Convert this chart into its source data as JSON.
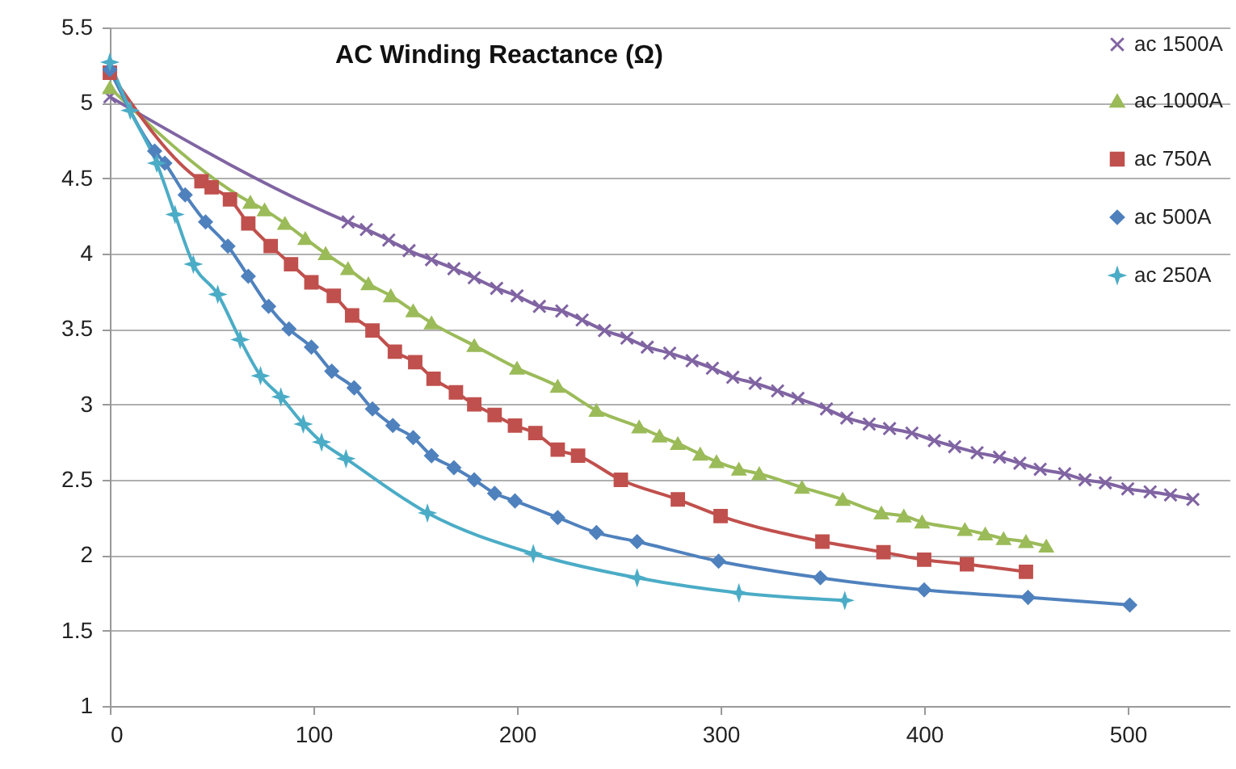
{
  "chart_data": {
    "type": "line",
    "title": "AC Winding Reactance (Ω)",
    "xlim": [
      0,
      550
    ],
    "xticks": [
      0,
      100,
      200,
      300,
      400,
      500
    ],
    "ylim": [
      1,
      5.5
    ],
    "yticks": [
      1,
      1.5,
      2,
      2.5,
      3,
      3.5,
      4,
      4.5,
      5,
      5.5
    ],
    "grid": "y",
    "legend": "top right",
    "line_style": "solid",
    "series": [
      {
        "name": "ac 1500A",
        "color": "#8064a2",
        "marker": "cross",
        "x": [
          0,
          117,
          126,
          137,
          147,
          158,
          169,
          179,
          190,
          200,
          211,
          222,
          232,
          243,
          254,
          264,
          275,
          286,
          296,
          306,
          317,
          328,
          338,
          352,
          362,
          373,
          383,
          394,
          405,
          415,
          426,
          437,
          447,
          457,
          469,
          479,
          489,
          500,
          511,
          521,
          532
        ],
        "values": [
          5.04,
          4.21,
          4.16,
          4.09,
          4.02,
          3.96,
          3.9,
          3.84,
          3.77,
          3.72,
          3.65,
          3.62,
          3.56,
          3.49,
          3.44,
          3.38,
          3.34,
          3.29,
          3.24,
          3.18,
          3.14,
          3.09,
          3.04,
          2.97,
          2.91,
          2.87,
          2.84,
          2.81,
          2.76,
          2.72,
          2.68,
          2.65,
          2.61,
          2.57,
          2.54,
          2.5,
          2.48,
          2.44,
          2.42,
          2.4,
          2.37
        ]
      },
      {
        "name": "ac 1000A",
        "color": "#9bbb59",
        "marker": "triangle",
        "x": [
          0,
          69,
          76,
          86,
          96,
          106,
          117,
          127,
          138,
          149,
          158,
          179,
          200,
          220,
          239,
          260,
          270,
          279,
          290,
          298,
          309,
          319,
          340,
          360,
          379,
          390,
          399,
          420,
          430,
          439,
          450,
          460
        ],
        "values": [
          5.1,
          4.34,
          4.29,
          4.2,
          4.1,
          4.0,
          3.9,
          3.8,
          3.72,
          3.62,
          3.54,
          3.39,
          3.24,
          3.12,
          2.96,
          2.85,
          2.79,
          2.74,
          2.67,
          2.62,
          2.57,
          2.54,
          2.45,
          2.37,
          2.28,
          2.26,
          2.22,
          2.17,
          2.14,
          2.11,
          2.09,
          2.06
        ]
      },
      {
        "name": "ac 750A",
        "color": "#c0504d",
        "marker": "square",
        "x": [
          0,
          45,
          50,
          59,
          68,
          79,
          89,
          99,
          110,
          119,
          129,
          140,
          150,
          159,
          170,
          179,
          189,
          199,
          209,
          220,
          230,
          251,
          279,
          300,
          350,
          380,
          400,
          421,
          450
        ],
        "values": [
          5.2,
          4.48,
          4.44,
          4.36,
          4.2,
          4.05,
          3.93,
          3.81,
          3.72,
          3.59,
          3.49,
          3.35,
          3.28,
          3.17,
          3.08,
          3.0,
          2.93,
          2.86,
          2.81,
          2.7,
          2.66,
          2.5,
          2.37,
          2.26,
          2.09,
          2.02,
          1.97,
          1.94,
          1.89
        ]
      },
      {
        "name": "ac 500A",
        "color": "#4f81bd",
        "marker": "diamond",
        "x": [
          0,
          22,
          27,
          37,
          47,
          58,
          68,
          78,
          88,
          99,
          109,
          120,
          129,
          139,
          149,
          158,
          169,
          179,
          189,
          199,
          220,
          239,
          259,
          299,
          349,
          400,
          451,
          501
        ],
        "values": [
          5.22,
          4.68,
          4.6,
          4.39,
          4.21,
          4.05,
          3.85,
          3.65,
          3.5,
          3.38,
          3.22,
          3.11,
          2.97,
          2.86,
          2.78,
          2.66,
          2.58,
          2.5,
          2.41,
          2.36,
          2.25,
          2.15,
          2.09,
          1.96,
          1.85,
          1.77,
          1.72,
          1.67
        ]
      },
      {
        "name": "ac 250A",
        "color": "#4bacc6",
        "marker": "star",
        "x": [
          0,
          10,
          23,
          32,
          41,
          53,
          64,
          74,
          84,
          95,
          104,
          116,
          156,
          208,
          259,
          309,
          361
        ],
        "values": [
          5.27,
          4.95,
          4.6,
          4.26,
          3.93,
          3.73,
          3.43,
          3.19,
          3.05,
          2.87,
          2.75,
          2.64,
          2.28,
          2.01,
          1.85,
          1.75,
          1.7
        ]
      }
    ]
  }
}
